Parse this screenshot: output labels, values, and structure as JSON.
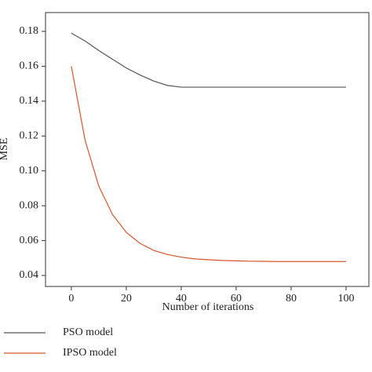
{
  "chart_data": {
    "type": "line",
    "x_label": "Number of iterations",
    "y_label": "MSE",
    "x": [
      0,
      5,
      10,
      15,
      20,
      25,
      30,
      35,
      40,
      45,
      50,
      55,
      60,
      65,
      70,
      75,
      80,
      85,
      90,
      95,
      100
    ],
    "series": [
      {
        "name": "PSO model",
        "color": "#555555",
        "values": [
          0.179,
          0.1745,
          0.169,
          0.164,
          0.159,
          0.155,
          0.1515,
          0.149,
          0.148,
          0.148,
          0.148,
          0.148,
          0.148,
          0.148,
          0.148,
          0.148,
          0.148,
          0.148,
          0.148,
          0.148,
          0.148
        ]
      },
      {
        "name": "IPSO model",
        "color": "#d9542b",
        "values": [
          0.16,
          0.1176,
          0.0912,
          0.0749,
          0.0647,
          0.0584,
          0.0544,
          0.052,
          0.0505,
          0.0495,
          0.049,
          0.0486,
          0.0484,
          0.0482,
          0.0481,
          0.048,
          0.048,
          0.048,
          0.048,
          0.048,
          0.048
        ]
      }
    ],
    "xlim": [
      -9.4,
      108.3
    ],
    "xticks": [
      0,
      20,
      40,
      60,
      80,
      100
    ],
    "ylim": [
      0.0337,
      0.1908
    ],
    "yticks": [
      {
        "value": 0.04,
        "label": "0.04"
      },
      {
        "value": 0.06,
        "label": "0.06"
      },
      {
        "value": 0.08,
        "label": "0.08"
      },
      {
        "value": 0.1,
        "label": "0.10"
      },
      {
        "value": 0.12,
        "label": "0.12"
      },
      {
        "value": 0.14,
        "label": "0.14"
      },
      {
        "value": 0.16,
        "label": "0.16"
      },
      {
        "value": 0.18,
        "label": "0.18"
      }
    ],
    "grid": false,
    "legend": "below"
  }
}
